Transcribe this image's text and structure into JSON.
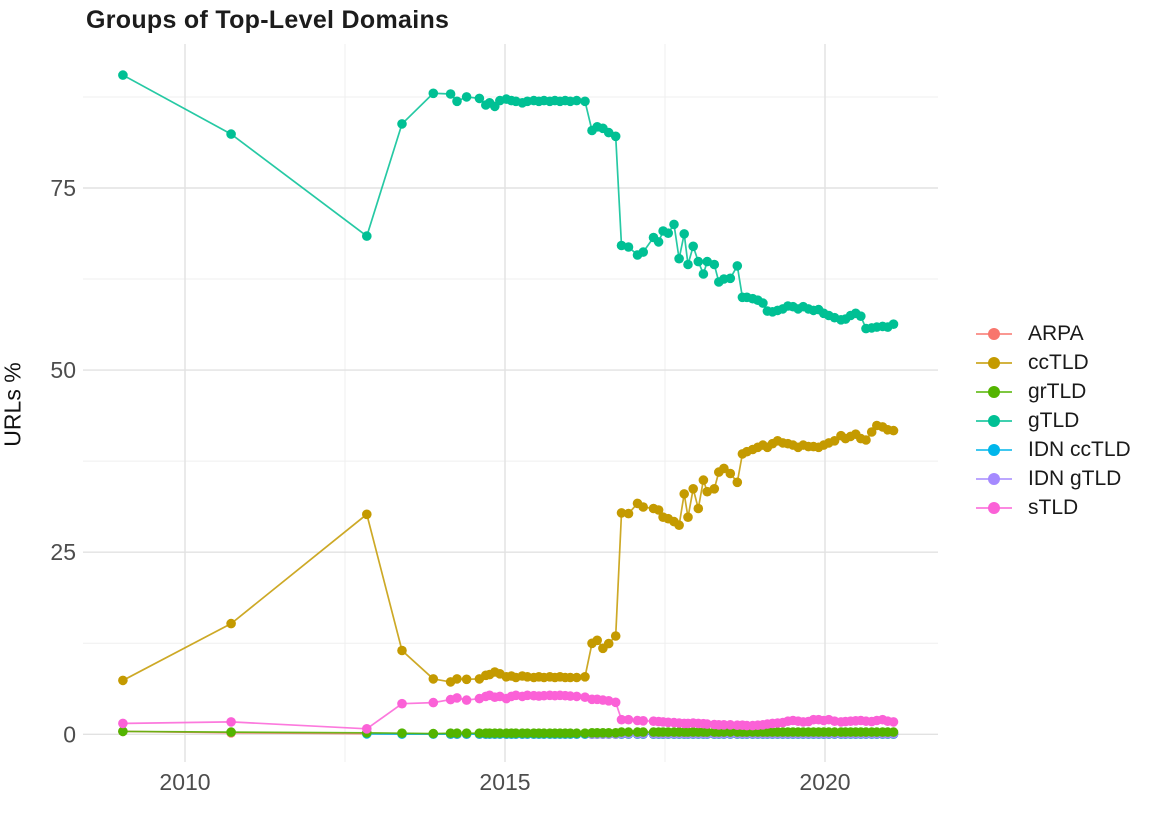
{
  "chart_data": {
    "type": "line",
    "title": "Groups of Top-Level Domains",
    "xlabel": "",
    "ylabel": "URLs %",
    "legend_position": "right",
    "grid": true,
    "xlim": [
      2008.45,
      2021.75
    ],
    "ylim": [
      -3.9,
      94.8
    ],
    "x_ticks": [
      {
        "value": 2010,
        "label": "2010"
      },
      {
        "value": 2015,
        "label": "2015"
      },
      {
        "value": 2020,
        "label": "2020"
      }
    ],
    "y_ticks": [
      {
        "value": 0,
        "label": "0"
      },
      {
        "value": 25,
        "label": "25"
      },
      {
        "value": 50,
        "label": "50"
      },
      {
        "value": 75,
        "label": "75"
      }
    ],
    "x_minor_gridlines": [
      2012.5,
      2017.5
    ],
    "y_minor_gridlines": [
      12.5,
      37.5,
      62.5,
      87.5
    ],
    "x": [
      2009.03,
      2010.72,
      2012.84,
      2013.39,
      2013.88,
      2014.15,
      2014.25,
      2014.4,
      2014.6,
      2014.7,
      2014.76,
      2014.84,
      2014.92,
      2015.02,
      2015.1,
      2015.17,
      2015.27,
      2015.35,
      2015.45,
      2015.53,
      2015.61,
      2015.7,
      2015.78,
      2015.86,
      2015.94,
      2016.02,
      2016.12,
      2016.25,
      2016.36,
      2016.44,
      2016.53,
      2016.62,
      2016.73,
      2016.82,
      2016.93,
      2017.07,
      2017.16,
      2017.32,
      2017.4,
      2017.47,
      2017.55,
      2017.64,
      2017.72,
      2017.8,
      2017.86,
      2017.94,
      2018.02,
      2018.1,
      2018.16,
      2018.27,
      2018.34,
      2018.42,
      2018.52,
      2018.63,
      2018.71,
      2018.78,
      2018.87,
      2018.95,
      2019.03,
      2019.1,
      2019.18,
      2019.26,
      2019.34,
      2019.42,
      2019.5,
      2019.58,
      2019.66,
      2019.74,
      2019.82,
      2019.9,
      2019.98,
      2020.06,
      2020.15,
      2020.25,
      2020.32,
      2020.4,
      2020.48,
      2020.56,
      2020.64,
      2020.73,
      2020.81,
      2020.9,
      2020.98,
      2021.07
    ],
    "series": [
      {
        "name": "ARPA",
        "color": "#F8766D",
        "values": [
          0.4,
          0.2,
          0.1,
          0.05,
          0.05,
          0.02,
          0.02,
          0.02,
          0.02,
          0.02,
          0.02,
          0.02,
          0.02,
          0.02,
          0.02,
          0.02,
          0.02,
          0.02,
          0.02,
          0.02,
          0.02,
          0.02,
          0.02,
          0.02,
          0.02,
          0.02,
          0.02,
          0.02,
          0.02,
          0.02,
          0.02,
          0.02,
          0.02,
          0.02,
          0.02,
          0.02,
          0.02,
          0.02,
          0.02,
          0.02,
          0.02,
          0.02,
          0.02,
          0.02,
          0.02,
          0.02,
          0.02,
          0.02,
          0.02,
          0.02,
          0.02,
          0.02,
          0.02,
          0.02,
          0.02,
          0.02,
          0.02,
          0.02,
          0.02,
          0.02,
          0.02,
          0.02,
          0.02,
          0.02,
          0.02,
          0.02,
          0.02,
          0.02,
          0.02,
          0.02,
          0.02,
          0.02,
          0.02,
          0.02,
          0.02,
          0.02,
          0.02,
          0.02,
          0.02,
          0.02,
          0.02,
          0.02,
          0.02,
          0.02
        ]
      },
      {
        "name": "ccTLD",
        "color": "#C49A00",
        "values": [
          7.4,
          15.2,
          30.2,
          11.5,
          7.6,
          7.2,
          7.6,
          7.55,
          7.6,
          8.1,
          8.2,
          8.55,
          8.3,
          7.9,
          8.0,
          7.8,
          8.0,
          7.9,
          7.8,
          7.9,
          7.8,
          7.9,
          7.8,
          7.9,
          7.8,
          7.8,
          7.8,
          7.9,
          12.5,
          12.9,
          11.8,
          12.45,
          13.5,
          30.4,
          30.3,
          31.7,
          31.2,
          31.0,
          30.8,
          29.8,
          29.6,
          29.2,
          28.7,
          33.0,
          29.8,
          33.7,
          31.0,
          34.9,
          33.3,
          33.7,
          36.0,
          36.5,
          35.8,
          34.6,
          38.5,
          38.8,
          39.1,
          39.4,
          39.7,
          39.4,
          39.9,
          40.3,
          40.0,
          39.9,
          39.7,
          39.4,
          39.7,
          39.5,
          39.5,
          39.4,
          39.7,
          40.0,
          40.3,
          41.0,
          40.6,
          40.9,
          41.2,
          40.6,
          40.4,
          41.5,
          42.4,
          42.2,
          41.8,
          41.7
        ]
      },
      {
        "name": "grTLD",
        "color": "#53B400",
        "values": [
          0.4,
          0.3,
          0.2,
          0.15,
          0.1,
          0.15,
          0.15,
          0.15,
          0.15,
          0.15,
          0.15,
          0.15,
          0.15,
          0.15,
          0.15,
          0.15,
          0.15,
          0.15,
          0.15,
          0.15,
          0.15,
          0.15,
          0.15,
          0.15,
          0.15,
          0.15,
          0.15,
          0.15,
          0.2,
          0.2,
          0.2,
          0.2,
          0.2,
          0.3,
          0.3,
          0.3,
          0.3,
          0.3,
          0.3,
          0.3,
          0.3,
          0.3,
          0.3,
          0.3,
          0.3,
          0.3,
          0.3,
          0.3,
          0.3,
          0.3,
          0.3,
          0.3,
          0.3,
          0.3,
          0.3,
          0.3,
          0.3,
          0.3,
          0.3,
          0.3,
          0.3,
          0.3,
          0.3,
          0.3,
          0.3,
          0.3,
          0.3,
          0.3,
          0.3,
          0.3,
          0.3,
          0.3,
          0.3,
          0.3,
          0.3,
          0.3,
          0.3,
          0.3,
          0.3,
          0.3,
          0.3,
          0.3,
          0.3,
          0.3
        ]
      },
      {
        "name": "gTLD",
        "color": "#00C094",
        "values": [
          90.5,
          82.4,
          68.4,
          83.8,
          88.0,
          87.9,
          86.9,
          87.5,
          87.3,
          86.4,
          86.7,
          86.2,
          87.0,
          87.2,
          87.0,
          86.9,
          86.7,
          86.9,
          87.0,
          86.9,
          87.0,
          86.9,
          87.0,
          86.9,
          87.0,
          86.9,
          87.0,
          86.9,
          82.9,
          83.4,
          83.2,
          82.6,
          82.1,
          67.1,
          66.9,
          65.8,
          66.2,
          68.2,
          67.6,
          69.1,
          68.8,
          70.0,
          65.3,
          68.7,
          64.5,
          67.0,
          64.9,
          63.2,
          64.9,
          64.5,
          62.1,
          62.5,
          62.6,
          64.3,
          60.0,
          60.0,
          59.8,
          59.6,
          59.2,
          58.1,
          58.0,
          58.2,
          58.4,
          58.8,
          58.7,
          58.4,
          58.7,
          58.4,
          58.2,
          58.3,
          57.8,
          57.5,
          57.2,
          56.9,
          57.0,
          57.5,
          57.8,
          57.4,
          55.7,
          55.8,
          55.9,
          56.0,
          55.9,
          56.3
        ]
      },
      {
        "name": "IDN ccTLD",
        "color": "#00B6EB",
        "values": [
          null,
          null,
          0.05,
          0.03,
          0.03,
          0.03,
          0.03,
          0.03,
          0.03,
          0.03,
          0.03,
          0.03,
          0.03,
          0.03,
          0.03,
          0.03,
          0.03,
          0.03,
          0.03,
          0.03,
          0.03,
          0.03,
          0.03,
          0.03,
          0.03,
          0.03,
          0.03,
          0.03,
          0.03,
          0.03,
          0.03,
          0.03,
          0.03,
          0.03,
          0.03,
          0.03,
          0.03,
          0.03,
          0.03,
          0.03,
          0.03,
          0.03,
          0.03,
          0.03,
          0.03,
          0.03,
          0.03,
          0.03,
          0.03,
          0.03,
          0.03,
          0.03,
          0.03,
          0.03,
          0.03,
          0.03,
          0.03,
          0.03,
          0.03,
          0.03,
          0.03,
          0.03,
          0.03,
          0.03,
          0.03,
          0.03,
          0.03,
          0.03,
          0.03,
          0.03,
          0.03,
          0.03,
          0.03,
          0.03,
          0.03,
          0.03,
          0.03,
          0.03,
          0.03,
          0.03,
          0.03,
          0.03,
          0.03,
          0.03
        ]
      },
      {
        "name": "IDN gTLD",
        "color": "#A58AFF",
        "values": [
          null,
          null,
          null,
          null,
          null,
          null,
          null,
          null,
          null,
          null,
          null,
          null,
          null,
          null,
          null,
          null,
          null,
          null,
          null,
          null,
          null,
          null,
          null,
          null,
          null,
          null,
          null,
          null,
          0.05,
          0.05,
          0.05,
          0.05,
          0.05,
          0.1,
          0.1,
          0.1,
          0.1,
          0.1,
          0.1,
          0.1,
          0.1,
          0.1,
          0.1,
          0.1,
          0.1,
          0.1,
          0.1,
          0.1,
          0.1,
          0.1,
          0.1,
          0.1,
          0.1,
          0.1,
          0.1,
          0.1,
          0.1,
          0.1,
          0.1,
          0.1,
          0.1,
          0.1,
          0.1,
          0.1,
          0.1,
          0.1,
          0.1,
          0.1,
          0.1,
          0.1,
          0.1,
          0.1,
          0.1,
          0.1,
          0.1,
          0.1,
          0.1,
          0.1,
          0.1,
          0.1,
          0.1,
          0.1,
          0.1,
          0.1
        ]
      },
      {
        "name": "sTLD",
        "color": "#FB61D7",
        "values": [
          1.5,
          1.7,
          0.75,
          4.2,
          4.35,
          4.76,
          5.0,
          4.7,
          4.9,
          5.2,
          5.35,
          5.1,
          5.2,
          4.9,
          5.2,
          5.35,
          5.2,
          5.35,
          5.3,
          5.25,
          5.3,
          5.35,
          5.3,
          5.35,
          5.3,
          5.25,
          5.2,
          5.1,
          4.8,
          4.8,
          4.7,
          4.6,
          4.4,
          2.0,
          2.0,
          1.9,
          1.85,
          1.8,
          1.75,
          1.7,
          1.65,
          1.6,
          1.55,
          1.5,
          1.5,
          1.55,
          1.5,
          1.45,
          1.4,
          1.35,
          1.3,
          1.3,
          1.3,
          1.25,
          1.25,
          1.2,
          1.2,
          1.25,
          1.3,
          1.4,
          1.5,
          1.55,
          1.6,
          1.8,
          1.9,
          1.8,
          1.7,
          1.75,
          2.0,
          2.0,
          1.9,
          2.0,
          1.8,
          1.7,
          1.75,
          1.8,
          1.85,
          1.9,
          1.8,
          1.75,
          1.9,
          2.0,
          1.8,
          1.7
        ]
      }
    ]
  }
}
